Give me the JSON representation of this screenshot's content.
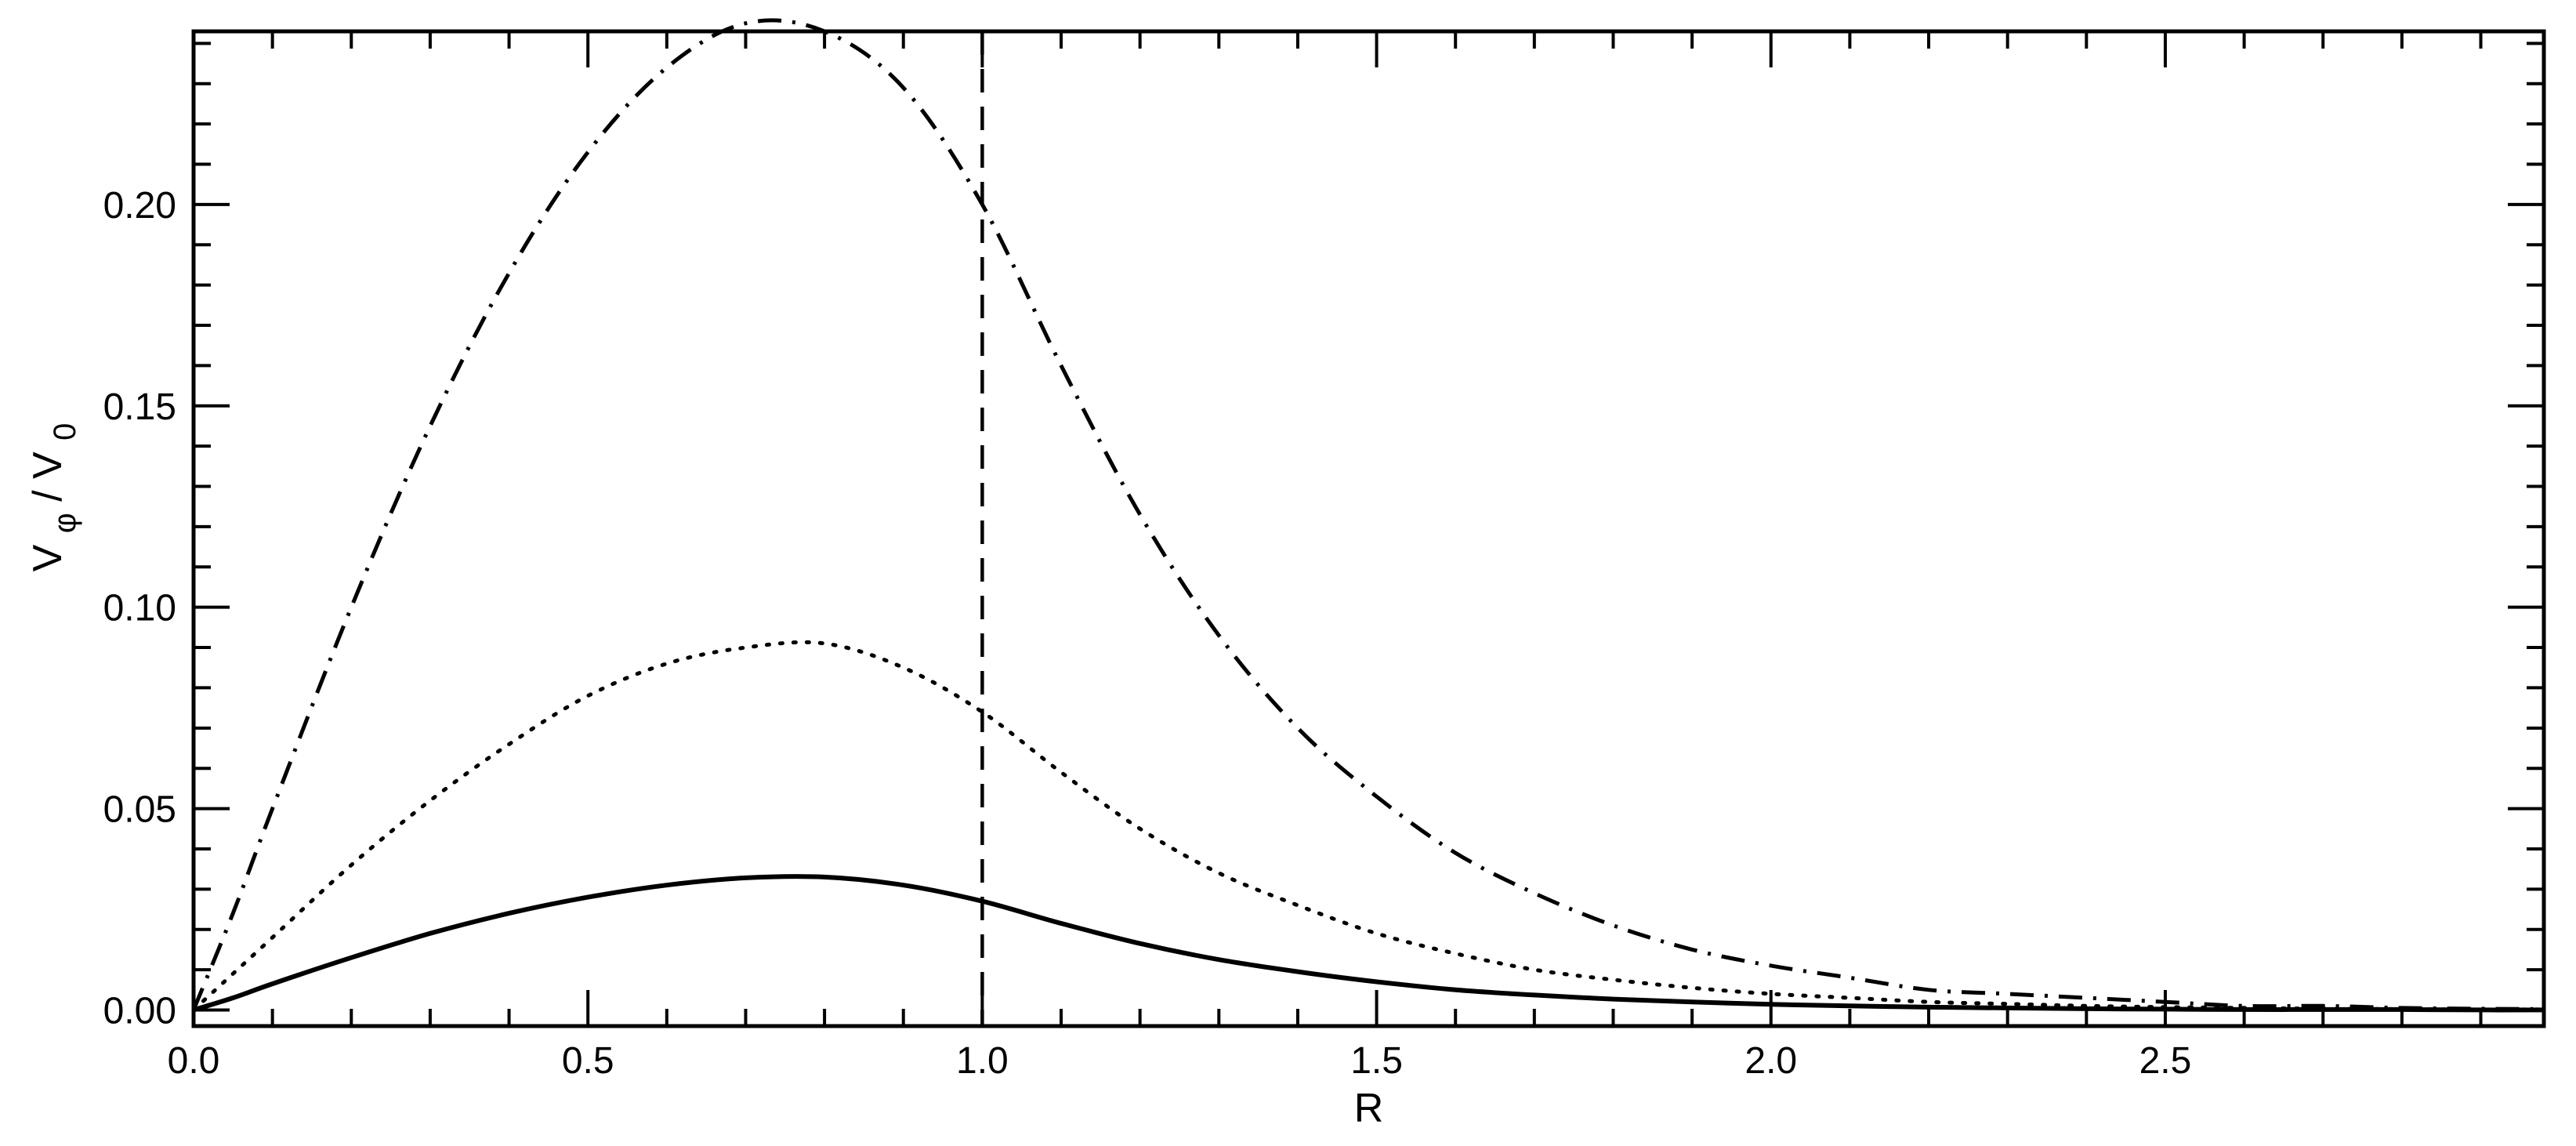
{
  "chart_data": {
    "type": "line",
    "title": "",
    "xlabel": "R",
    "ylabel": {
      "main": "V",
      "main_subscript": "φ",
      "separator": " / ",
      "denominator": "V",
      "denominator_subscript": "0"
    },
    "xlim": [
      0.0,
      2.98
    ],
    "ylim": [
      -0.004,
      0.243
    ],
    "x_ticks": [
      0.0,
      0.5,
      1.0,
      1.5,
      2.0,
      2.5
    ],
    "x_tick_labels": [
      "0.0",
      "0.5",
      "1.0",
      "1.5",
      "2.0",
      "2.5"
    ],
    "x_minor_step": 0.1,
    "y_ticks": [
      0.0,
      0.05,
      0.1,
      0.15,
      0.2
    ],
    "y_tick_labels": [
      "0.00",
      "0.05",
      "0.10",
      "0.15",
      "0.20"
    ],
    "y_minor_step": 0.01,
    "grid": false,
    "legend": "none",
    "vertical_lines": [
      {
        "x": 1.0,
        "style": "dashed"
      }
    ],
    "series": [
      {
        "style": "dash-dot",
        "color": "#000000",
        "x": [
          0.0,
          0.05,
          0.1,
          0.2,
          0.3,
          0.4,
          0.5,
          0.6,
          0.7,
          0.8,
          0.9,
          1.0,
          1.1,
          1.2,
          1.3,
          1.4,
          1.5,
          1.6,
          1.7,
          1.8,
          1.9,
          2.0,
          2.1,
          2.2,
          2.3,
          2.4,
          2.5,
          2.6,
          2.7,
          2.8,
          2.9,
          2.98
        ],
        "y": [
          0.0,
          0.024,
          0.05,
          0.1,
          0.145,
          0.183,
          0.213,
          0.234,
          0.245,
          0.243,
          0.229,
          0.2,
          0.16,
          0.123,
          0.093,
          0.07,
          0.053,
          0.039,
          0.029,
          0.021,
          0.015,
          0.011,
          0.008,
          0.005,
          0.004,
          0.003,
          0.002,
          0.001,
          0.001,
          0.0005,
          0.0003,
          0.0002
        ]
      },
      {
        "style": "dotted",
        "color": "#000000",
        "x": [
          0.0,
          0.05,
          0.1,
          0.2,
          0.3,
          0.4,
          0.5,
          0.6,
          0.7,
          0.8,
          0.9,
          1.0,
          1.1,
          1.2,
          1.3,
          1.4,
          1.5,
          1.6,
          1.7,
          1.8,
          1.9,
          2.0,
          2.1,
          2.2,
          2.3,
          2.4,
          2.5,
          2.6,
          2.7,
          2.8,
          2.9,
          2.98
        ],
        "y": [
          0.0,
          0.009,
          0.018,
          0.036,
          0.052,
          0.066,
          0.078,
          0.086,
          0.09,
          0.091,
          0.085,
          0.074,
          0.059,
          0.045,
          0.034,
          0.026,
          0.019,
          0.014,
          0.01,
          0.0075,
          0.0055,
          0.004,
          0.003,
          0.002,
          0.0015,
          0.001,
          0.0007,
          0.0005,
          0.0003,
          0.0002,
          0.0001,
          0.0001
        ]
      },
      {
        "style": "solid",
        "color": "#000000",
        "x": [
          0.0,
          0.05,
          0.1,
          0.2,
          0.3,
          0.4,
          0.5,
          0.6,
          0.7,
          0.8,
          0.9,
          1.0,
          1.1,
          1.2,
          1.3,
          1.4,
          1.5,
          1.6,
          1.7,
          1.8,
          1.9,
          2.0,
          2.1,
          2.2,
          2.3,
          2.4,
          2.5,
          2.6,
          2.7,
          2.8,
          2.9,
          2.98
        ],
        "y": [
          0.0,
          0.003,
          0.0065,
          0.013,
          0.019,
          0.024,
          0.028,
          0.031,
          0.0328,
          0.033,
          0.031,
          0.027,
          0.0215,
          0.0165,
          0.0125,
          0.0095,
          0.007,
          0.005,
          0.0037,
          0.0027,
          0.002,
          0.0014,
          0.001,
          0.0007,
          0.0005,
          0.0003,
          0.0002,
          0.0001,
          0.0001,
          0.0001,
          0.0,
          0.0
        ]
      }
    ]
  }
}
